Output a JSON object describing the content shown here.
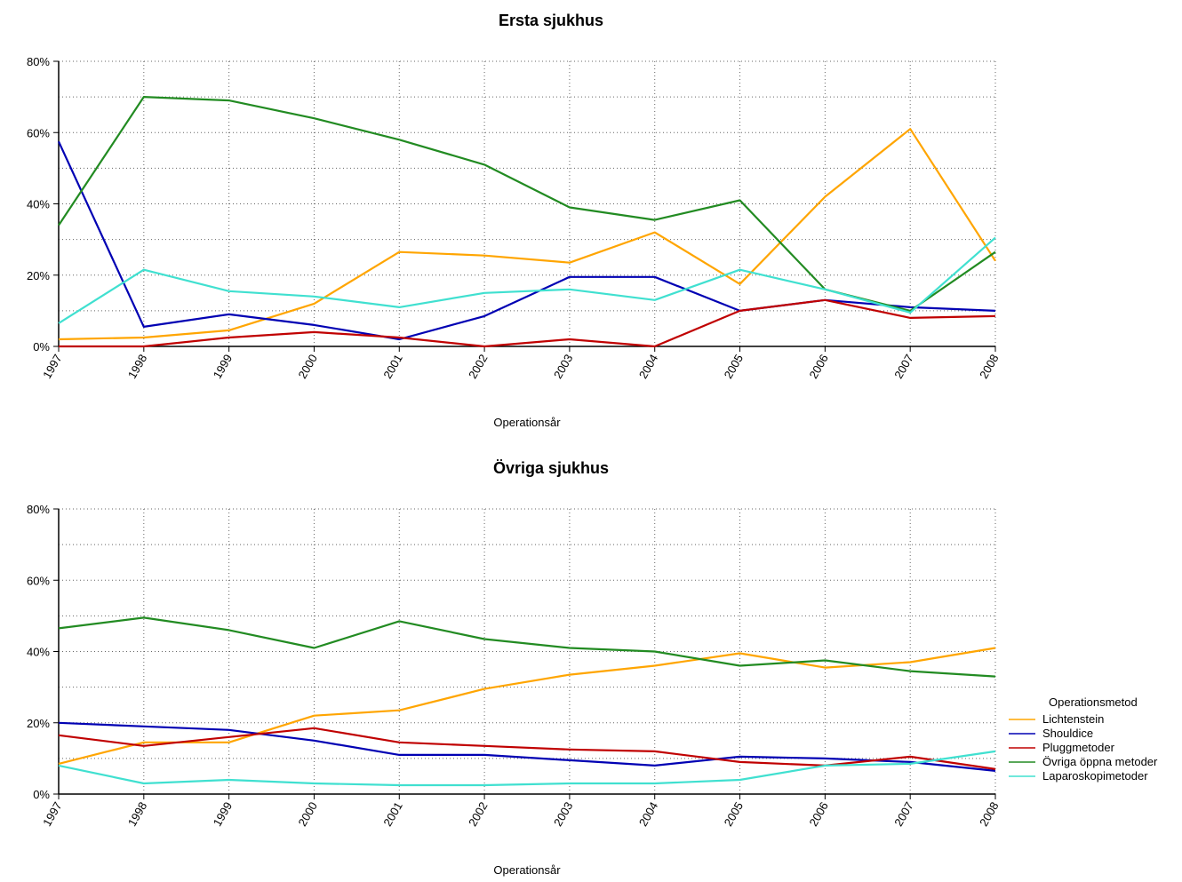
{
  "chart_data": [
    {
      "type": "line",
      "title": "Ersta sjukhus",
      "xlabel": "Operationsår",
      "ylabel": "",
      "x": [
        "1997",
        "1998",
        "1999",
        "2000",
        "2001",
        "2002",
        "2003",
        "2004",
        "2005",
        "2006",
        "2007",
        "2008"
      ],
      "ylim": [
        0,
        80
      ],
      "yticks": [
        "0%",
        "20%",
        "40%",
        "60%",
        "80%"
      ],
      "grid": true,
      "series": [
        {
          "name": "Lichtenstein",
          "color": "#FFA500",
          "values": [
            2,
            2.5,
            4.5,
            12,
            26.5,
            25.5,
            23.5,
            32,
            17.5,
            42,
            61,
            24
          ]
        },
        {
          "name": "Shouldice",
          "color": "#0000B3",
          "values": [
            57.5,
            5.5,
            9,
            6,
            2,
            8.5,
            19.5,
            19.5,
            10,
            13,
            11,
            10
          ]
        },
        {
          "name": "Pluggmetoder",
          "color": "#C00000",
          "values": [
            0,
            0,
            2.5,
            4,
            2.5,
            0,
            2,
            0,
            10,
            13,
            8,
            8.5
          ]
        },
        {
          "name": "Övriga öppna metoder",
          "color": "#228B22",
          "values": [
            34,
            70,
            69,
            64,
            58,
            51,
            39,
            35.5,
            41,
            16,
            10,
            26.5
          ]
        },
        {
          "name": "Laparoskopimetoder",
          "color": "#40E0D0",
          "values": [
            6.5,
            21.5,
            15.5,
            14,
            11,
            15,
            16,
            13,
            21.5,
            16,
            9.5,
            30.5
          ]
        }
      ]
    },
    {
      "type": "line",
      "title": "Övriga sjukhus",
      "xlabel": "Operationsår",
      "ylabel": "",
      "x": [
        "1997",
        "1998",
        "1999",
        "2000",
        "2001",
        "2002",
        "2003",
        "2004",
        "2005",
        "2006",
        "2007",
        "2008"
      ],
      "ylim": [
        0,
        80
      ],
      "yticks": [
        "0%",
        "20%",
        "40%",
        "60%",
        "80%"
      ],
      "grid": true,
      "legend_position": "right",
      "legend_title": "Operationsmetod",
      "series": [
        {
          "name": "Lichtenstein",
          "color": "#FFA500",
          "values": [
            8.5,
            14.5,
            14.5,
            22,
            23.5,
            29.5,
            33.5,
            36,
            39.5,
            35.5,
            37,
            41
          ]
        },
        {
          "name": "Shouldice",
          "color": "#0000B3",
          "values": [
            20,
            19,
            18,
            15,
            11,
            11,
            9.5,
            8,
            10.5,
            10,
            9,
            6.5
          ]
        },
        {
          "name": "Pluggmetoder",
          "color": "#C00000",
          "values": [
            16.5,
            13.5,
            16,
            18.5,
            14.5,
            13.5,
            12.5,
            12,
            9,
            8,
            10.5,
            7
          ]
        },
        {
          "name": "Övriga öppna metoder",
          "color": "#228B22",
          "values": [
            46.5,
            49.5,
            46,
            41,
            48.5,
            43.5,
            41,
            40,
            36,
            37.5,
            34.5,
            33
          ]
        },
        {
          "name": "Laparoskopimetoder",
          "color": "#40E0D0",
          "values": [
            8,
            3,
            4,
            3,
            2.5,
            2.5,
            3,
            3,
            4,
            8,
            8.5,
            12
          ]
        }
      ]
    }
  ]
}
